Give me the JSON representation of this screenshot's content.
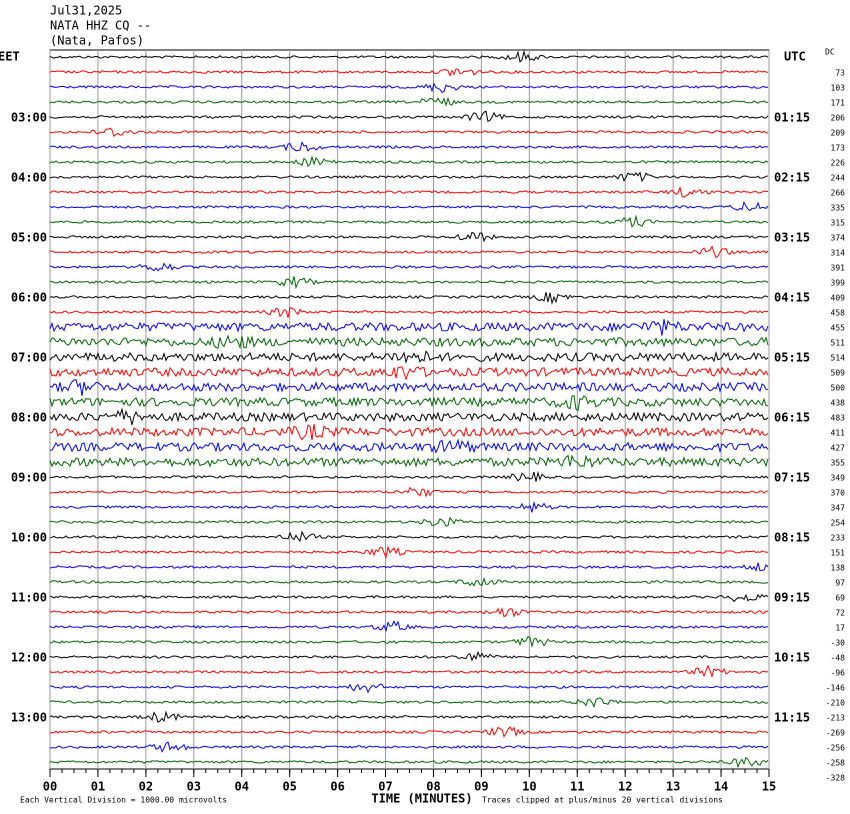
{
  "header": {
    "date": "Jul31,2025",
    "station": "NATA HHZ CQ --",
    "location": "(Nata, Pafos)"
  },
  "chart_data": {
    "type": "helicorder",
    "left_zone": "EET",
    "right_zone": "UTC",
    "dc_label": "DC",
    "left_labels": [
      "03:00",
      "04:00",
      "05:00",
      "06:00",
      "07:00",
      "08:00",
      "09:00",
      "10:00",
      "11:00",
      "12:00",
      "13:00"
    ],
    "right_labels": [
      "01:15",
      "02:15",
      "03:15",
      "04:15",
      "05:15",
      "06:15",
      "07:15",
      "08:15",
      "09:15",
      "10:15",
      "11:15"
    ],
    "dc_offsets": [
      73,
      103,
      171,
      206,
      209,
      173,
      226,
      244,
      266,
      335,
      315,
      374,
      314,
      391,
      399,
      409,
      458,
      455,
      511,
      514,
      509,
      500,
      438,
      483,
      411,
      427,
      355,
      349,
      370,
      347,
      254,
      233,
      151,
      138,
      97,
      69,
      72,
      17,
      -30,
      -48,
      -96,
      -146,
      -210,
      -213,
      -269,
      -256,
      -258,
      -328
    ],
    "trace_colors": [
      "#000000",
      "#ff0000",
      "#0000ff",
      "#006600"
    ],
    "xlim": [
      0,
      15
    ],
    "xticks": [
      {
        "value": 0,
        "label": "00"
      },
      {
        "value": 1,
        "label": "01"
      },
      {
        "value": 2,
        "label": "02"
      },
      {
        "value": 3,
        "label": "03"
      },
      {
        "value": 4,
        "label": "04"
      },
      {
        "value": 5,
        "label": "05"
      },
      {
        "value": 6,
        "label": "06"
      },
      {
        "value": 7,
        "label": "07"
      },
      {
        "value": 8,
        "label": "08"
      },
      {
        "value": 9,
        "label": "09"
      },
      10,
      11,
      12,
      13,
      14,
      15
    ],
    "xlabel": "TIME (MINUTES)",
    "scale_note": "Each Vertical Division = 1000.00 microvolts",
    "clip_note": "Traces clipped at plus/minus 20 vertical divisions",
    "grid": true
  }
}
